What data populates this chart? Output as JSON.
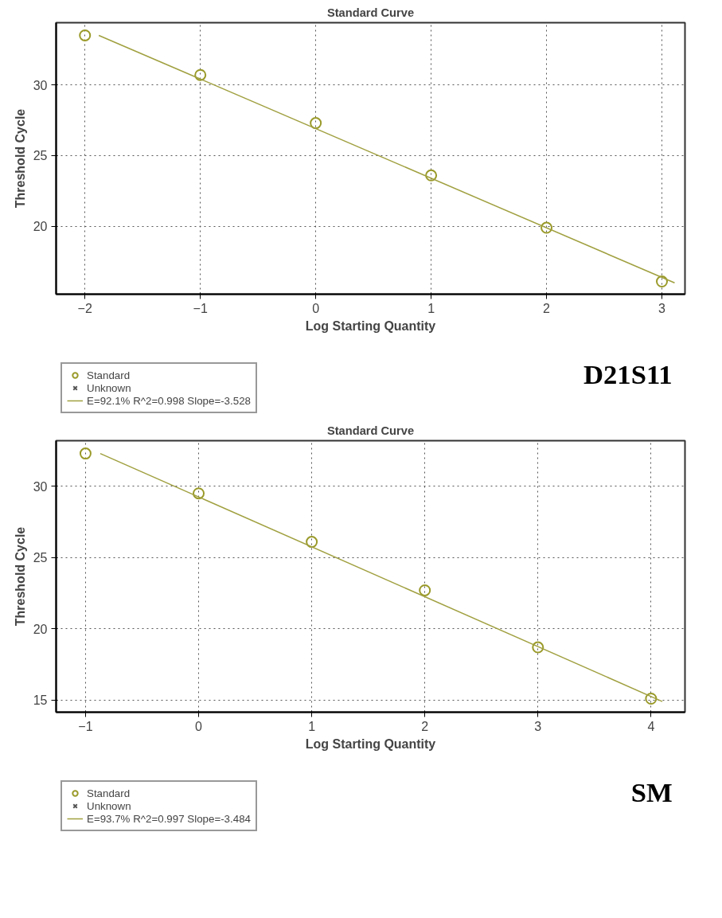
{
  "chart_data": [
    {
      "type": "scatter",
      "title": "Standard Curve",
      "xlabel": "Log Starting Quantity",
      "ylabel": "Threshold Cycle",
      "x": [
        -2,
        -1,
        0,
        1,
        2,
        3
      ],
      "series": [
        {
          "name": "Standard",
          "type": "scatter",
          "marker": "circle",
          "color": "#9a9a2a",
          "values": [
            33.5,
            30.7,
            27.3,
            23.6,
            19.9,
            16.1
          ]
        },
        {
          "name": "Unknown",
          "type": "scatter",
          "marker": "cross",
          "color": "#555555",
          "values": [
            null,
            null,
            null,
            null,
            null,
            null
          ]
        },
        {
          "name": "E=92.1% R^2=0.998 Slope=-3.528",
          "type": "line",
          "line_style": "solid",
          "marker": "none",
          "color": "#a0a040",
          "x": [
            -1.88,
            3.11
          ],
          "values": [
            33.5,
            16.0
          ]
        }
      ],
      "xlim": [
        -2.25,
        3.2
      ],
      "ylim": [
        15.2,
        34.4
      ],
      "xticks": [
        -2,
        -1,
        0,
        1,
        2,
        3
      ],
      "yticks": [
        20,
        25,
        30
      ],
      "grid": true,
      "legend": "bottom left",
      "annotations": [
        "D21S11"
      ]
    },
    {
      "type": "scatter",
      "title": "Standard Curve",
      "xlabel": "Log Starting Quantity",
      "ylabel": "Threshold Cycle",
      "x": [
        -1,
        0,
        1,
        2,
        3,
        4
      ],
      "series": [
        {
          "name": "Standard",
          "type": "scatter",
          "marker": "circle",
          "color": "#9a9a2a",
          "values": [
            32.3,
            29.5,
            26.1,
            22.7,
            18.7,
            15.1
          ]
        },
        {
          "name": "Unknown",
          "type": "scatter",
          "marker": "cross",
          "color": "#555555",
          "values": [
            null,
            null,
            null,
            null,
            null,
            null
          ]
        },
        {
          "name": "E=93.7% R^2=0.997 Slope=-3.484",
          "type": "line",
          "line_style": "solid",
          "marker": "none",
          "color": "#a0a040",
          "x": [
            -0.87,
            4.1
          ],
          "values": [
            32.3,
            14.9
          ]
        }
      ],
      "xlim": [
        -1.26,
        4.3
      ],
      "ylim": [
        14.15,
        33.2
      ],
      "xticks": [
        -1,
        0,
        1,
        2,
        3,
        4
      ],
      "yticks": [
        15,
        20,
        25,
        30
      ],
      "grid": true,
      "legend": "bottom left",
      "annotations": [
        "SM"
      ]
    }
  ]
}
